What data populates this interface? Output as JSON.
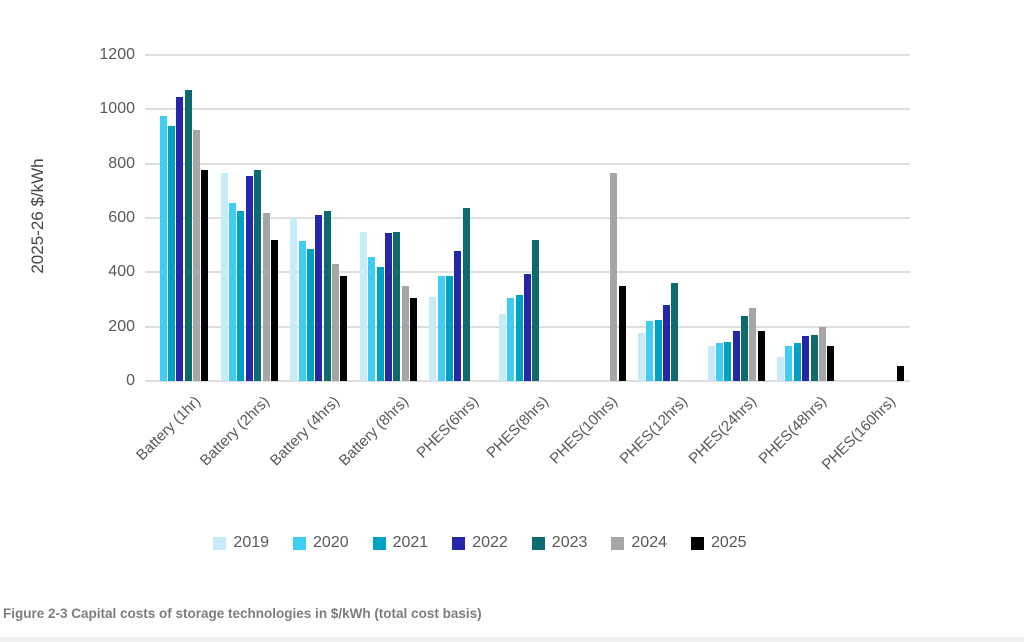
{
  "page": {
    "caption": "Figure 2-3 Capital costs of storage technologies in $/kWh (total cost basis)"
  },
  "chart_data": {
    "type": "bar",
    "title": "",
    "xlabel": "",
    "ylabel": "2025-26 $/kWh",
    "ylim": [
      0,
      1200
    ],
    "yticks": [
      0,
      200,
      400,
      600,
      800,
      1000,
      1200
    ],
    "grid": true,
    "legend_position": "bottom",
    "grid_color": "#dedede",
    "axis_text_color": "#595959",
    "categories": [
      "Battery (1hr)",
      "Battery (2hrs)",
      "Battery (4hrs)",
      "Battery (8hrs)",
      "PHES(6hrs)",
      "PHES(8hrs)",
      "PHES(10hrs)",
      "PHES(12hrs)",
      "PHES(24hrs)",
      "PHES(48hrs)",
      "PHES(160hrs)"
    ],
    "series": [
      {
        "name": "2019",
        "color": "#c7ebf8",
        "values": [
          null,
          765,
          600,
          550,
          310,
          245,
          null,
          175,
          130,
          90,
          null
        ]
      },
      {
        "name": "2020",
        "color": "#3fcdf1",
        "values": [
          975,
          655,
          515,
          455,
          385,
          305,
          null,
          220,
          140,
          130,
          null
        ]
      },
      {
        "name": "2021",
        "color": "#00a2c4",
        "values": [
          940,
          625,
          485,
          420,
          385,
          315,
          null,
          225,
          145,
          140,
          null
        ]
      },
      {
        "name": "2022",
        "color": "#2527a8",
        "values": [
          1045,
          755,
          610,
          545,
          480,
          395,
          null,
          280,
          185,
          165,
          null
        ]
      },
      {
        "name": "2023",
        "color": "#0d6b70",
        "values": [
          1070,
          775,
          625,
          550,
          635,
          520,
          null,
          360,
          240,
          170,
          null
        ]
      },
      {
        "name": "2024",
        "color": "#a6a6a6",
        "values": [
          925,
          620,
          430,
          350,
          null,
          null,
          765,
          null,
          270,
          200,
          null
        ]
      },
      {
        "name": "2025",
        "color": "#000000",
        "values": [
          775,
          520,
          385,
          305,
          null,
          null,
          350,
          null,
          185,
          130,
          55
        ]
      }
    ]
  }
}
